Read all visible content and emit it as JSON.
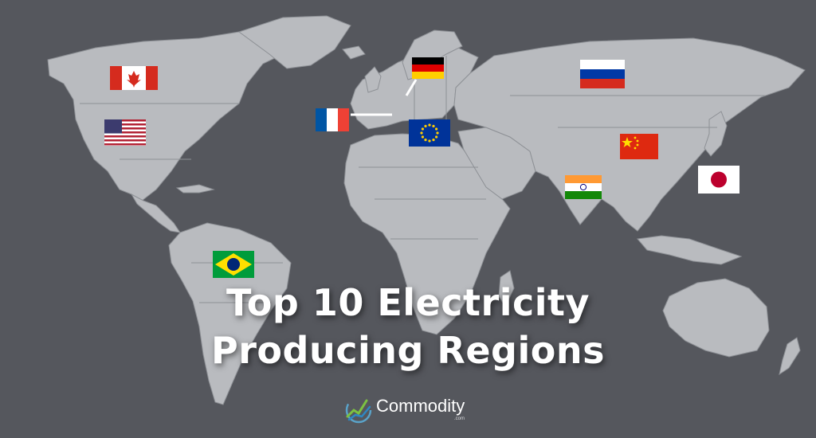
{
  "title": {
    "line1": "Top 10 Electricity",
    "line2": "Producing Regions"
  },
  "brand": {
    "name": "Commodity",
    "suffix": ".com",
    "icon": "chart-line-logo-icon"
  },
  "colors": {
    "background": "#55575d",
    "land": "#b9bbbf",
    "borders": "#8d9095",
    "text": "#ffffff"
  },
  "regions": [
    {
      "country": "Canada",
      "flag": "canada-flag-icon"
    },
    {
      "country": "United States",
      "flag": "usa-flag-icon"
    },
    {
      "country": "Brazil",
      "flag": "brazil-flag-icon"
    },
    {
      "country": "France",
      "flag": "france-flag-icon"
    },
    {
      "country": "Germany",
      "flag": "germany-flag-icon"
    },
    {
      "country": "European Union",
      "flag": "eu-flag-icon"
    },
    {
      "country": "Russia",
      "flag": "russia-flag-icon"
    },
    {
      "country": "China",
      "flag": "china-flag-icon"
    },
    {
      "country": "India",
      "flag": "india-flag-icon"
    },
    {
      "country": "Japan",
      "flag": "japan-flag-icon"
    }
  ]
}
